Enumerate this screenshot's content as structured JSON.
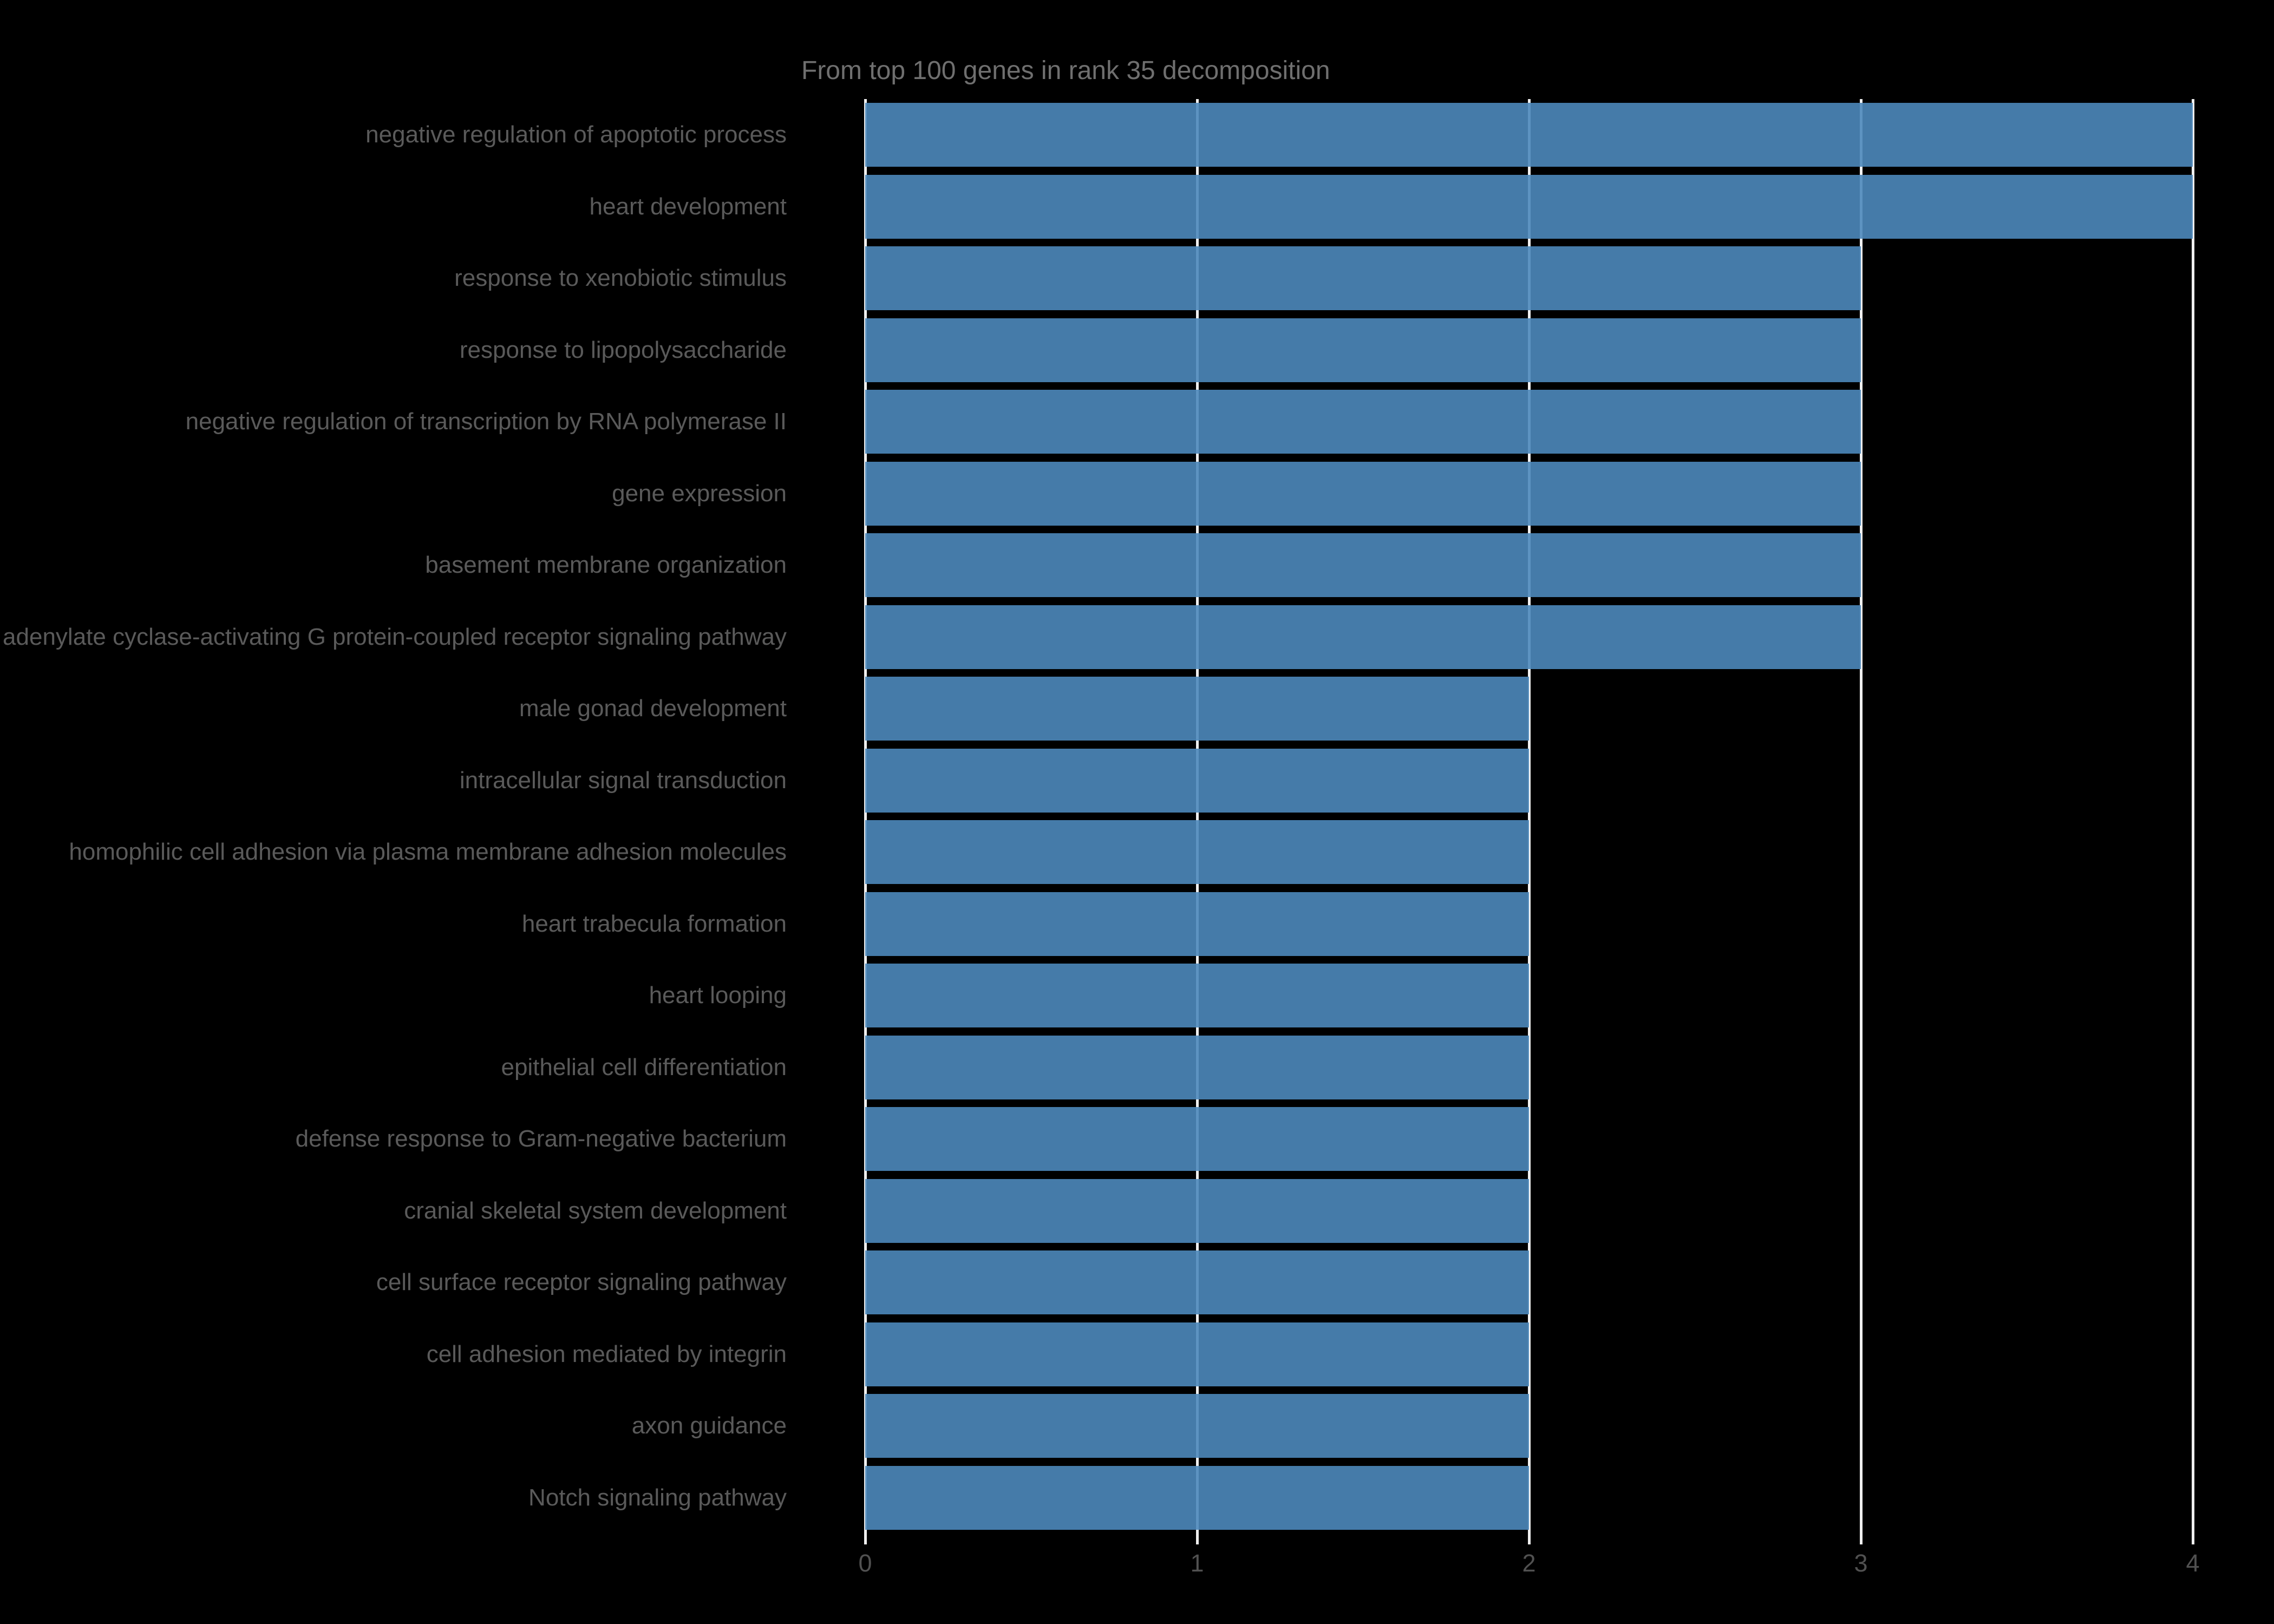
{
  "title": "From top 100 genes in rank 35 decomposition",
  "chart_data": {
    "type": "bar",
    "orientation": "horizontal",
    "title": "From top 100 genes in rank 35 decomposition",
    "xlabel": "",
    "ylabel": "",
    "xlim": [
      0,
      4
    ],
    "xticks": [
      "0",
      "1",
      "2",
      "3",
      "4"
    ],
    "grid": true,
    "legend": "none",
    "categories": [
      "negative regulation of apoptotic process",
      "heart development",
      "response to xenobiotic stimulus",
      "response to lipopolysaccharide",
      "negative regulation of transcription by RNA polymerase II",
      "gene expression",
      "basement membrane organization",
      "adenylate cyclase-activating G protein-coupled receptor signaling pathway",
      "male gonad development",
      "intracellular signal transduction",
      "homophilic cell adhesion via plasma membrane adhesion molecules",
      "heart trabecula formation",
      "heart looping",
      "epithelial cell differentiation",
      "defense response to Gram-negative bacterium",
      "cranial skeletal system development",
      "cell surface receptor signaling pathway",
      "cell adhesion mediated by integrin",
      "axon guidance",
      "Notch signaling pathway"
    ],
    "values": [
      4,
      4,
      3,
      3,
      3,
      3,
      3,
      3,
      2,
      2,
      2,
      2,
      2,
      2,
      2,
      2,
      2,
      2,
      2,
      2
    ],
    "colors": {
      "background": "#000000",
      "bar": "#4682b4",
      "gridline": "#efefef",
      "title_text": "#6f6f6f",
      "category_text": "#5a5a5a",
      "tick_text": "#515151"
    }
  }
}
